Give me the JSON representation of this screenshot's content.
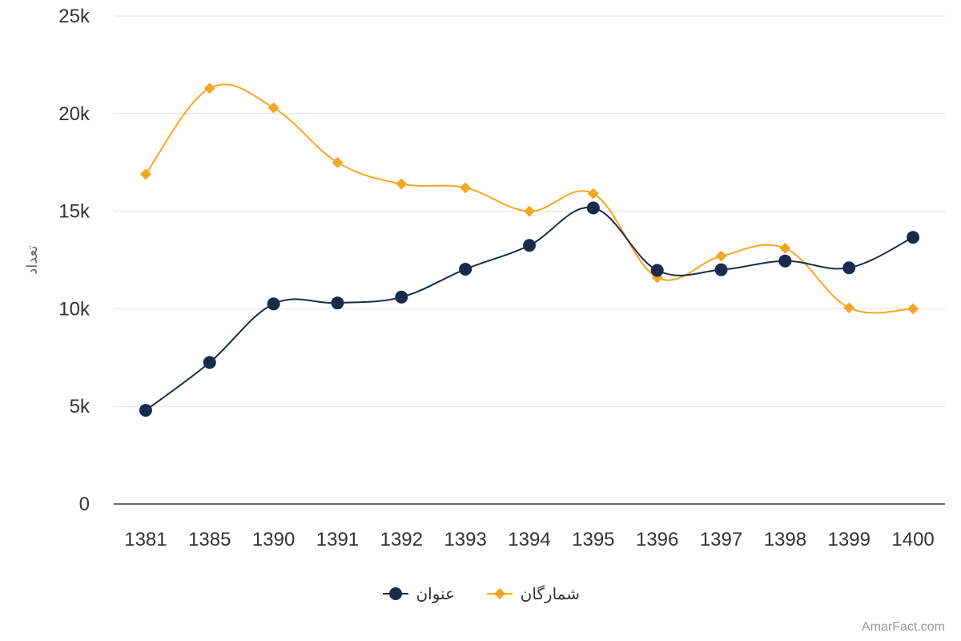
{
  "chart_data": {
    "type": "line",
    "categories": [
      "1381",
      "1385",
      "1390",
      "1391",
      "1392",
      "1393",
      "1394",
      "1395",
      "1396",
      "1397",
      "1398",
      "1399",
      "1400"
    ],
    "series": [
      {
        "name": "عنوان",
        "color": "#1b2a4a",
        "marker": "circle",
        "values": [
          4800,
          7250,
          10250,
          10300,
          10600,
          12030,
          13250,
          15170,
          11970,
          12000,
          12450,
          12100,
          13660
        ]
      },
      {
        "name": "شمارگان",
        "color": "#f5a623",
        "marker": "diamond",
        "values": [
          16900,
          21300,
          20300,
          17500,
          16400,
          16200,
          15000,
          15900,
          11600,
          12700,
          13100,
          10050,
          10000
        ]
      }
    ],
    "ylabel": "تعداد",
    "ylim": [
      0,
      25000
    ],
    "yticks": [
      {
        "value": 0,
        "label": "0"
      },
      {
        "value": 5000,
        "label": "5k"
      },
      {
        "value": 10000,
        "label": "10k"
      },
      {
        "value": 15000,
        "label": "15k"
      },
      {
        "value": 20000,
        "label": "20k"
      },
      {
        "value": 25000,
        "label": "25k"
      }
    ],
    "grid": true,
    "legend": "bottom"
  },
  "credit": "AmarFact.com"
}
